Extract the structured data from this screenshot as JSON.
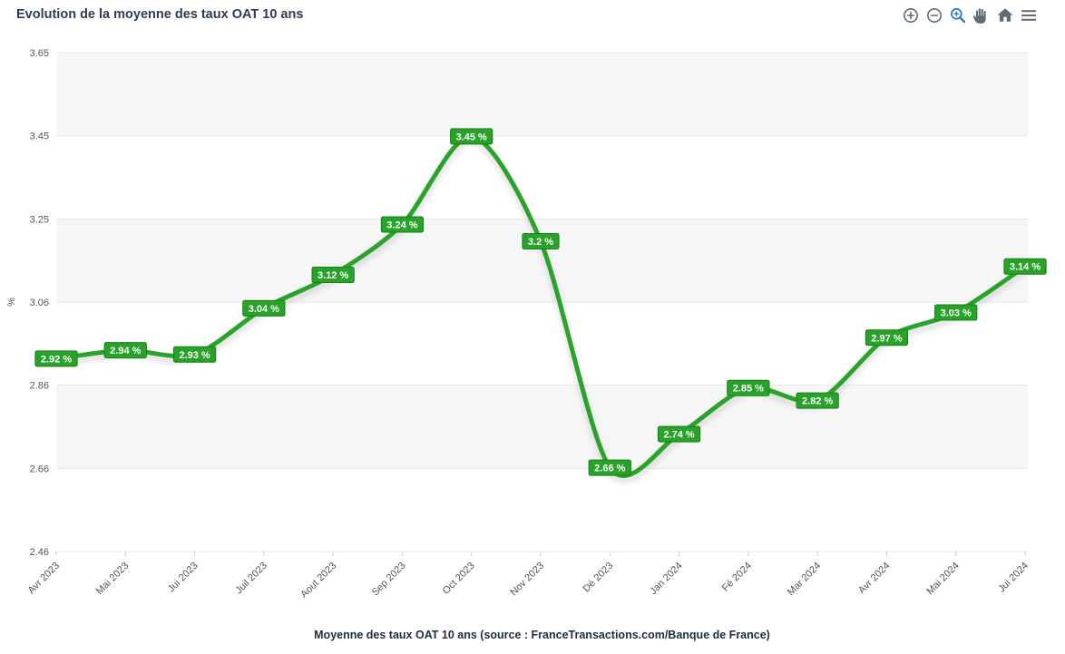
{
  "header": {
    "title": "Evolution de la moyenne des taux OAT 10 ans"
  },
  "toolbar": {
    "icon_color": "#5d6b7b",
    "active_color": "#1e7ad0",
    "items": [
      {
        "name": "zoom-in",
        "icon": "plus-circle-icon",
        "active": false
      },
      {
        "name": "zoom-out",
        "icon": "minus-circle-icon",
        "active": false
      },
      {
        "name": "selection-zoom",
        "icon": "magnifier-icon",
        "active": true
      },
      {
        "name": "pan",
        "icon": "hand-icon",
        "active": false
      },
      {
        "name": "reset",
        "icon": "home-icon",
        "active": false
      },
      {
        "name": "menu",
        "icon": "hamburger-icon",
        "active": false
      }
    ]
  },
  "chart_data": {
    "type": "line",
    "title": "Evolution de la moyenne des taux OAT 10 ans",
    "categories": [
      "Avr 2023",
      "Mai 2023",
      "Jui 2023",
      "Juil 2023",
      "Aout 2023",
      "Sep 2023",
      "Oct 2023",
      "Nov 2023",
      "Dé 2023",
      "Jan 2024",
      "Fé 2024",
      "Mar 2024",
      "Avr 2024",
      "Mai 2024",
      "Jui 2024"
    ],
    "values": [
      2.92,
      2.94,
      2.93,
      3.04,
      3.12,
      3.24,
      3.45,
      3.2,
      2.66,
      2.74,
      2.85,
      2.82,
      2.97,
      3.03,
      3.14
    ],
    "point_labels": [
      "2.92 %",
      "2.94 %",
      "2.93 %",
      "3.04 %",
      "3.12 %",
      "3.24 %",
      "3.45 %",
      "3.2 %",
      "2.66 %",
      "2.74 %",
      "2.85 %",
      "2.82 %",
      "2.97 %",
      "3.03 %",
      "3.14 %"
    ],
    "xlabel": "",
    "ylabel": "%",
    "ylim": [
      2.46,
      3.65
    ],
    "ytick_labels": [
      "3.65",
      "3.45",
      "3.25",
      "3.06",
      "2.86",
      "2.66",
      "2.46"
    ],
    "grid": true,
    "alternating_bands": true,
    "legend": "none",
    "colors": {
      "line": "#2ca32c",
      "label_bg": "#28a228",
      "label_border": "#167f16",
      "band": "#f6f6f7",
      "grid": "#e7e7e9",
      "axis_text": "#555555"
    }
  },
  "caption": {
    "text": "Moyenne des taux OAT 10 ans (source : FranceTransactions.com/Banque de France)"
  }
}
